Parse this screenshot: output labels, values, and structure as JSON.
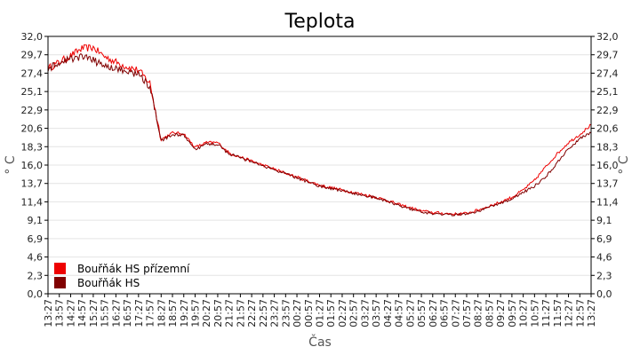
{
  "chart_data": {
    "type": "line",
    "title": "Teplota",
    "xlabel": "Čas",
    "ylabel_left": "° C",
    "ylabel_right": "° C",
    "ylim": [
      0,
      32
    ],
    "yticks": [
      "0,0",
      "2,3",
      "4,6",
      "6,9",
      "9,1",
      "11,4",
      "13,7",
      "16,0",
      "18,3",
      "20,6",
      "22,9",
      "25,1",
      "27,4",
      "29,7",
      "32,0"
    ],
    "x_tick_labels": [
      "13:27",
      "13:57",
      "14:27",
      "14:57",
      "15:27",
      "15:57",
      "16:27",
      "16:57",
      "17:27",
      "17:57",
      "18:27",
      "18:57",
      "19:27",
      "19:57",
      "20:27",
      "20:57",
      "21:27",
      "21:57",
      "22:27",
      "22:57",
      "23:27",
      "23:57",
      "00:27",
      "00:57",
      "01:27",
      "01:57",
      "02:27",
      "02:57",
      "03:27",
      "03:57",
      "04:27",
      "04:57",
      "05:27",
      "05:57",
      "06:27",
      "06:57",
      "07:27",
      "07:57",
      "08:27",
      "08:57",
      "09:27",
      "09:57",
      "10:27",
      "10:57",
      "11:27",
      "11:57",
      "12:27",
      "12:57",
      "13:27"
    ],
    "grid": true,
    "legend_position": "bottom-left",
    "series": [
      {
        "name": "Bouřňák HS přízemní",
        "color": "#ee0000",
        "values": [
          28.0,
          28.8,
          29.6,
          30.5,
          30.6,
          29.5,
          28.8,
          28.2,
          27.8,
          26.2,
          19.2,
          20.0,
          19.9,
          18.2,
          18.8,
          18.8,
          17.5,
          17.0,
          16.5,
          16.0,
          15.5,
          15.0,
          14.5,
          14.0,
          13.5,
          13.2,
          12.9,
          12.6,
          12.3,
          12.0,
          11.6,
          11.1,
          10.7,
          10.3,
          10.1,
          10.0,
          9.9,
          10.0,
          10.4,
          10.9,
          11.4,
          12.0,
          12.9,
          14.1,
          15.8,
          17.4,
          18.8,
          19.8,
          21.0
        ]
      },
      {
        "name": "Bouřňák HS",
        "color": "#800000",
        "values": [
          28.0,
          28.6,
          29.2,
          29.5,
          29.0,
          28.4,
          28.0,
          27.6,
          27.3,
          25.8,
          19.0,
          19.8,
          19.7,
          17.9,
          18.6,
          18.6,
          17.4,
          16.9,
          16.4,
          15.9,
          15.4,
          14.9,
          14.4,
          13.9,
          13.4,
          13.1,
          12.8,
          12.5,
          12.2,
          11.9,
          11.5,
          11.0,
          10.6,
          10.2,
          10.0,
          9.9,
          9.8,
          9.9,
          10.3,
          10.8,
          11.3,
          11.8,
          12.6,
          13.4,
          14.5,
          16.3,
          18.0,
          19.3,
          20.0
        ]
      }
    ]
  }
}
